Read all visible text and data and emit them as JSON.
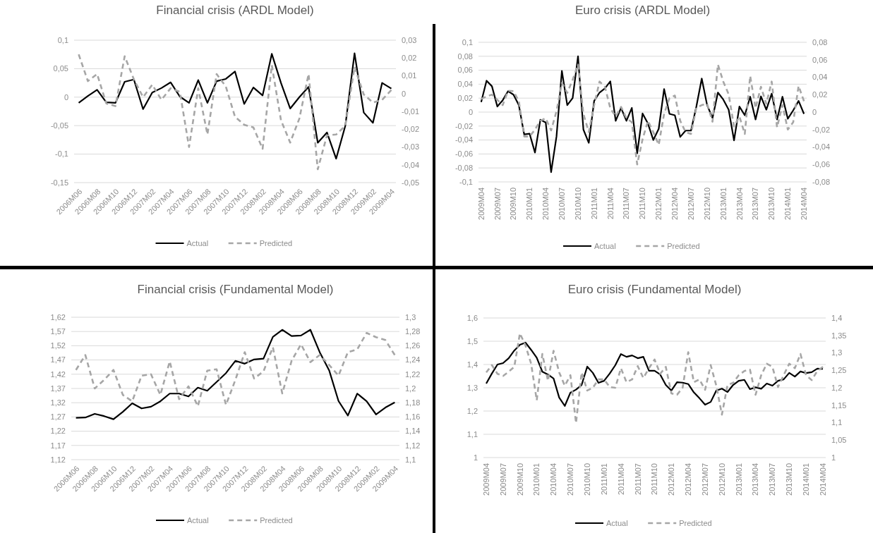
{
  "chart_data": [
    {
      "type": "line",
      "title": "Financial crisis (ARDL Model)",
      "categories": [
        "2006M06",
        null,
        "2006M08",
        null,
        "2006M10",
        null,
        "2006M12",
        null,
        "2007M02",
        null,
        "2007M04",
        null,
        "2007M06",
        null,
        "2007M08",
        null,
        "2007M10",
        null,
        "2007M12",
        null,
        "2008M02",
        null,
        "2008M04",
        null,
        "2008M06",
        null,
        "2008M08",
        null,
        "2008M10",
        null,
        "2008M12",
        null,
        "2009M02",
        null,
        "2009M04"
      ],
      "series": [
        {
          "name": "Actual",
          "color": "#000000",
          "line_style": "solid",
          "values": [
            -0.01,
            0.002,
            0.013,
            -0.009,
            -0.01,
            0.027,
            0.031,
            -0.021,
            0.008,
            0.016,
            0.026,
            0.001,
            -0.01,
            0.03,
            -0.01,
            0.028,
            0.032,
            0.045,
            -0.012,
            0.017,
            0.003,
            0.076,
            0.025,
            -0.02,
            0,
            0.018,
            -0.08,
            -0.062,
            -0.108,
            -0.05,
            0.077,
            -0.027,
            -0.045,
            0.025,
            0.015
          ]
        },
        {
          "name": "Predicted",
          "color": "#a6a6a6",
          "line_style": "dashed",
          "axis": "y2",
          "values": [
            0.022,
            0.007,
            0.011,
            -0.0055,
            -0.007,
            0.021,
            0.008,
            -0.002,
            0.005,
            -0.0035,
            0.003,
            0.001,
            -0.03,
            0.003,
            -0.023,
            0.011,
            0.004,
            -0.013,
            -0.0175,
            -0.019,
            -0.031,
            0.016,
            -0.015,
            -0.0275,
            -0.014,
            0.011,
            -0.0425,
            -0.0235,
            -0.023,
            -0.018,
            0.015,
            -0.0005,
            -0.005,
            -0.0035,
            0.002
          ]
        }
      ],
      "ylim": [
        -0.15,
        0.1
      ],
      "yticks": [
        {
          "value": 0.1,
          "label": "0,1"
        },
        {
          "value": 0.05,
          "label": "0,05"
        },
        {
          "value": 0,
          "label": "0"
        },
        {
          "value": -0.05,
          "label": "-0,05"
        },
        {
          "value": -0.1,
          "label": "-0,1"
        },
        {
          "value": -0.15,
          "label": "-0,15"
        }
      ],
      "y2lim": [
        -0.05,
        0.03
      ],
      "y2ticks": [
        {
          "value": 0.03,
          "label": "0,03"
        },
        {
          "value": 0.02,
          "label": "0,02"
        },
        {
          "value": 0.01,
          "label": "0,01"
        },
        {
          "value": 0,
          "label": "0"
        },
        {
          "value": -0.01,
          "label": "-0,01"
        },
        {
          "value": -0.02,
          "label": "-0,02"
        },
        {
          "value": -0.03,
          "label": "-0,03"
        },
        {
          "value": -0.04,
          "label": "-0,04"
        },
        {
          "value": -0.05,
          "label": "-0,05"
        }
      ],
      "grid": "y",
      "legend": "bottom"
    },
    {
      "type": "line",
      "title": "Euro crisis  (ARDL Model)",
      "categories": [
        "2009M04",
        null,
        null,
        "2009M07",
        null,
        null,
        "2009M10",
        null,
        null,
        "2010M01",
        null,
        null,
        "2010M04",
        null,
        null,
        "2010M07",
        null,
        null,
        "2010M10",
        null,
        null,
        "2011M01",
        null,
        null,
        "2011M04",
        null,
        null,
        "2011M07",
        null,
        null,
        "2011M10",
        null,
        null,
        "2012M01",
        null,
        null,
        "2012M04",
        null,
        null,
        "2012M07",
        null,
        null,
        "2012M10",
        null,
        null,
        "2013M01",
        null,
        null,
        "2013M04",
        null,
        null,
        "2013M07",
        null,
        null,
        "2013M10",
        null,
        null,
        "2014M01",
        null,
        null,
        "2014M04"
      ],
      "series": [
        {
          "name": "Actual",
          "color": "#000000",
          "line_style": "solid",
          "values": [
            0.0145,
            0.045,
            0.037,
            0.008,
            0.017,
            0.03,
            0.025,
            0.01,
            -0.032,
            -0.031,
            -0.058,
            -0.011,
            -0.015,
            -0.086,
            -0.035,
            0.059,
            0.01,
            0.02,
            0.08,
            -0.025,
            -0.044,
            0.016,
            0.028,
            0.034,
            0.044,
            -0.0125,
            0.006,
            -0.0125,
            0.006,
            -0.059,
            -0.002,
            -0.0165,
            -0.04,
            -0.024,
            0.033,
            -0.0025,
            -0.0045,
            -0.0355,
            -0.0265,
            -0.0265,
            0.008,
            0.048,
            0.01,
            -0.0085,
            0.028,
            0.018,
            0.0035,
            -0.0405,
            0.008,
            -0.0045,
            0.022,
            -0.0105,
            0.0225,
            0.0035,
            0.0265,
            -0.0105,
            0.022,
            -0.0095,
            0.0025,
            0.016,
            -0.0025
          ]
        },
        {
          "name": "Predicted",
          "color": "#a6a6a6",
          "line_style": "dashed",
          "axis": "y2",
          "values": [
            0.015,
            0.018,
            0.02,
            0.014,
            0.008,
            0.0245,
            0.024,
            0.0125,
            -0.028,
            -0.028,
            -0.02,
            -0.01,
            -0.007,
            -0.021,
            0.001,
            0.0335,
            0.022,
            0.037,
            0.0545,
            -0.002,
            -0.023,
            0.008,
            0.035,
            0.029,
            0.0045,
            -0.005,
            0.006,
            -0.007,
            -0.0115,
            -0.06,
            -0.031,
            -0.01,
            -0.023,
            -0.0375,
            -0.002,
            0.016,
            0.019,
            -0.01,
            -0.023,
            -0.025,
            0.005,
            0.008,
            0.0095,
            -0.011,
            0.0545,
            0.035,
            0.0205,
            -0.0165,
            -0.005,
            -0.025,
            0.0415,
            0.0045,
            0.029,
            0.0095,
            0.035,
            -0.0175,
            0.008,
            -0.02,
            -0.0115,
            0.03,
            0.0125
          ]
        }
      ],
      "ylim": [
        -0.1,
        0.1
      ],
      "yticks": [
        {
          "value": 0.1,
          "label": "0,1"
        },
        {
          "value": 0.08,
          "label": "0,08"
        },
        {
          "value": 0.06,
          "label": "0,06"
        },
        {
          "value": 0.04,
          "label": "0,04"
        },
        {
          "value": 0.02,
          "label": "0,02"
        },
        {
          "value": 0,
          "label": "0"
        },
        {
          "value": -0.02,
          "label": "-0,02"
        },
        {
          "value": -0.04,
          "label": "-0,04"
        },
        {
          "value": -0.06,
          "label": "-0,06"
        },
        {
          "value": -0.08,
          "label": "-0,08"
        },
        {
          "value": -0.1,
          "label": "-0,1"
        }
      ],
      "y2lim": [
        -0.08,
        0.08
      ],
      "y2ticks": [
        {
          "value": 0.08,
          "label": "0,08"
        },
        {
          "value": 0.06,
          "label": "0,06"
        },
        {
          "value": 0.04,
          "label": "0,04"
        },
        {
          "value": 0.02,
          "label": "0,02"
        },
        {
          "value": 0,
          "label": "0"
        },
        {
          "value": -0.02,
          "label": "-0,02"
        },
        {
          "value": -0.04,
          "label": "-0,04"
        },
        {
          "value": -0.06,
          "label": "-0,06"
        },
        {
          "value": -0.08,
          "label": "-0,08"
        }
      ],
      "grid": "y",
      "legend": "bottom"
    },
    {
      "type": "line",
      "title": "Financial crisis (Fundamental Model)",
      "categories": [
        "2006M06",
        null,
        "2006M08",
        null,
        "2006M10",
        null,
        "2006M12",
        null,
        "2007M02",
        null,
        "2007M04",
        null,
        "2007M06",
        null,
        "2007M08",
        null,
        "2007M10",
        null,
        "2007M12",
        null,
        "2008M02",
        null,
        "2008M04",
        null,
        "2008M06",
        null,
        "2008M08",
        null,
        "2008M10",
        null,
        "2008M12",
        null,
        "2009M02",
        null,
        "2009M04"
      ],
      "series": [
        {
          "name": "Actual",
          "color": "#000000",
          "line_style": "solid",
          "values": [
            1.267,
            1.268,
            1.281,
            1.273,
            1.262,
            1.288,
            1.318,
            1.3,
            1.306,
            1.325,
            1.352,
            1.352,
            1.342,
            1.373,
            1.362,
            1.393,
            1.424,
            1.467,
            1.457,
            1.472,
            1.475,
            1.551,
            1.576,
            1.554,
            1.556,
            1.576,
            1.497,
            1.434,
            1.326,
            1.275,
            1.352,
            1.325,
            1.279,
            1.303,
            1.321
          ]
        },
        {
          "name": "Predicted",
          "color": "#a6a6a6",
          "line_style": "dashed",
          "axis": "y2",
          "values": [
            1.226,
            1.247,
            1.2,
            1.212,
            1.226,
            1.191,
            1.182,
            1.218,
            1.22,
            1.191,
            1.238,
            1.185,
            1.203,
            1.175,
            1.225,
            1.227,
            1.177,
            1.212,
            1.251,
            1.214,
            1.224,
            1.258,
            1.193,
            1.239,
            1.262,
            1.237,
            1.247,
            1.233,
            1.218,
            1.251,
            1.255,
            1.278,
            1.272,
            1.268,
            1.247
          ]
        }
      ],
      "ylim": [
        1.12,
        1.62
      ],
      "yticks": [
        {
          "value": 1.62,
          "label": "1,62"
        },
        {
          "value": 1.57,
          "label": "1,57"
        },
        {
          "value": 1.52,
          "label": "1,52"
        },
        {
          "value": 1.47,
          "label": "1,47"
        },
        {
          "value": 1.42,
          "label": "1,42"
        },
        {
          "value": 1.37,
          "label": "1,37"
        },
        {
          "value": 1.32,
          "label": "1,32"
        },
        {
          "value": 1.27,
          "label": "1,27"
        },
        {
          "value": 1.22,
          "label": "1,22"
        },
        {
          "value": 1.17,
          "label": "1,17"
        },
        {
          "value": 1.12,
          "label": "1,12"
        }
      ],
      "y2lim": [
        1.1,
        1.3
      ],
      "y2ticks": [
        {
          "value": 1.3,
          "label": "1,3"
        },
        {
          "value": 1.28,
          "label": "1,28"
        },
        {
          "value": 1.26,
          "label": "1,26"
        },
        {
          "value": 1.24,
          "label": "1,24"
        },
        {
          "value": 1.22,
          "label": "1,22"
        },
        {
          "value": 1.2,
          "label": "1,2"
        },
        {
          "value": 1.18,
          "label": "1,18"
        },
        {
          "value": 1.16,
          "label": "1,16"
        },
        {
          "value": 1.14,
          "label": "1,14"
        },
        {
          "value": 1.12,
          "label": "1,12"
        },
        {
          "value": 1.1,
          "label": "1,1"
        }
      ],
      "grid": "y",
      "legend": "bottom"
    },
    {
      "type": "line",
      "title": "Euro crisis (Fundamental Model)",
      "categories": [
        "2009M04",
        null,
        null,
        "2009M07",
        null,
        null,
        "2009M10",
        null,
        null,
        "2010M01",
        null,
        null,
        "2010M04",
        null,
        null,
        "2010M07",
        null,
        null,
        "2010M10",
        null,
        null,
        "2011M01",
        null,
        null,
        "2011M04",
        null,
        null,
        "2011M07",
        null,
        null,
        "2011M10",
        null,
        null,
        "2012M01",
        null,
        null,
        "2012M04",
        null,
        null,
        "2012M07",
        null,
        null,
        "2012M10",
        null,
        null,
        "2013M01",
        null,
        null,
        "2013M04",
        null,
        null,
        "2013M07",
        null,
        null,
        "2013M10",
        null,
        null,
        "2014M01",
        null,
        null,
        "2014M04"
      ],
      "series": [
        {
          "name": "Actual",
          "color": "#000000",
          "line_style": "solid",
          "values": [
            1.318,
            1.361,
            1.4,
            1.406,
            1.427,
            1.46,
            1.485,
            1.494,
            1.463,
            1.429,
            1.369,
            1.357,
            1.34,
            1.258,
            1.222,
            1.279,
            1.292,
            1.312,
            1.391,
            1.364,
            1.321,
            1.33,
            1.361,
            1.397,
            1.445,
            1.433,
            1.439,
            1.427,
            1.433,
            1.373,
            1.373,
            1.357,
            1.312,
            1.288,
            1.324,
            1.322,
            1.316,
            1.28,
            1.255,
            1.227,
            1.239,
            1.288,
            1.296,
            1.282,
            1.312,
            1.33,
            1.334,
            1.294,
            1.302,
            1.296,
            1.318,
            1.309,
            1.33,
            1.336,
            1.364,
            1.348,
            1.37,
            1.363,
            1.367,
            1.382,
            1.381
          ]
        },
        {
          "name": "Predicted",
          "color": "#a6a6a6",
          "line_style": "dashed",
          "axis": "y2",
          "values": [
            1.244,
            1.265,
            1.24,
            1.234,
            1.246,
            1.26,
            1.356,
            1.321,
            1.269,
            1.164,
            1.297,
            1.22,
            1.306,
            1.244,
            1.206,
            1.236,
            1.099,
            1.244,
            1.192,
            1.2,
            1.224,
            1.224,
            1.202,
            1.2,
            1.256,
            1.216,
            1.224,
            1.262,
            1.228,
            1.256,
            1.281,
            1.24,
            1.26,
            1.184,
            1.18,
            1.2,
            1.302,
            1.216,
            1.224,
            1.194,
            1.265,
            1.206,
            1.123,
            1.208,
            1.214,
            1.236,
            1.248,
            1.252,
            1.18,
            1.236,
            1.269,
            1.26,
            1.202,
            1.236,
            1.269,
            1.256,
            1.297,
            1.236,
            1.222,
            1.248,
            1.26
          ]
        }
      ],
      "ylim": [
        1,
        1.6
      ],
      "yticks": [
        {
          "value": 1.6,
          "label": "1,6"
        },
        {
          "value": 1.5,
          "label": "1,5"
        },
        {
          "value": 1.4,
          "label": "1,4"
        },
        {
          "value": 1.3,
          "label": "1,3"
        },
        {
          "value": 1.2,
          "label": "1,2"
        },
        {
          "value": 1.1,
          "label": "1,1"
        },
        {
          "value": 1,
          "label": "1"
        }
      ],
      "y2lim": [
        1,
        1.4
      ],
      "y2ticks": [
        {
          "value": 1.4,
          "label": "1,4"
        },
        {
          "value": 1.35,
          "label": "1,35"
        },
        {
          "value": 1.3,
          "label": "1,3"
        },
        {
          "value": 1.25,
          "label": "1,25"
        },
        {
          "value": 1.2,
          "label": "1,2"
        },
        {
          "value": 1.15,
          "label": "1,15"
        },
        {
          "value": 1.1,
          "label": "1,1"
        },
        {
          "value": 1.05,
          "label": "1,05"
        },
        {
          "value": 1,
          "label": "1"
        }
      ],
      "grid": "y",
      "legend": "bottom"
    }
  ]
}
